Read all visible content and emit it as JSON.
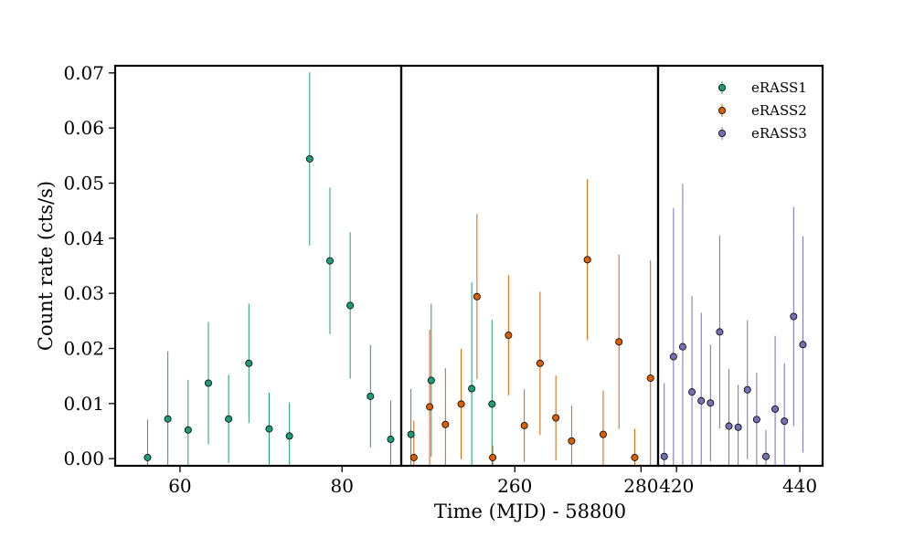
{
  "chart_data": {
    "type": "scatter",
    "xlabel": "Time (MJD) - 58800",
    "ylabel": "Count rate (cts/s)",
    "ylim": [
      -0.0013,
      0.0713
    ],
    "yticks": [
      0.0,
      0.01,
      0.02,
      0.03,
      0.04,
      0.05,
      0.06,
      0.07
    ],
    "ytick_labels": [
      "0.00",
      "0.01",
      "0.02",
      "0.03",
      "0.04",
      "0.05",
      "0.06",
      "0.07"
    ],
    "legend": {
      "position": "top-right"
    },
    "panels": [
      {
        "xlim": [
          52.0,
          87.3
        ],
        "xticks": [
          60,
          80
        ],
        "xtick_labels": [
          "60",
          "80"
        ]
      },
      {
        "xlim": [
          242.0,
          282.7
        ],
        "xticks": [
          260,
          280
        ],
        "xtick_labels": [
          "260",
          "280"
        ]
      },
      {
        "xlim": [
          417.0,
          443.7
        ],
        "xticks": [
          420,
          440
        ],
        "xtick_labels": [
          "420",
          "440"
        ]
      }
    ],
    "series": [
      {
        "name": "eRASS1",
        "color": "#1b9e77",
        "panel": 0,
        "points": [
          {
            "x": 56.0,
            "y": 0.0002,
            "err": 0.0069
          },
          {
            "x": 58.5,
            "y": 0.0072,
            "err": 0.0123
          },
          {
            "x": 61.0,
            "y": 0.0052,
            "err": 0.0091
          },
          {
            "x": 63.5,
            "y": 0.0137,
            "err": 0.0111
          },
          {
            "x": 66.0,
            "y": 0.0072,
            "err": 0.008
          },
          {
            "x": 68.5,
            "y": 0.0173,
            "err": 0.0108
          },
          {
            "x": 71.0,
            "y": 0.0054,
            "err": 0.0066
          },
          {
            "x": 73.5,
            "y": 0.0041,
            "err": 0.0061
          },
          {
            "x": 76.0,
            "y": 0.0544,
            "err": 0.0157
          },
          {
            "x": 78.5,
            "y": 0.0359,
            "err": 0.0133
          },
          {
            "x": 81.0,
            "y": 0.0278,
            "err": 0.0133
          },
          {
            "x": 83.5,
            "y": 0.0113,
            "err": 0.0093
          },
          {
            "x": 86.0,
            "y": 0.0035,
            "err": 0.007
          },
          {
            "x": 88.5,
            "y": 0.0044,
            "err": 0.0083
          },
          {
            "x": 91.0,
            "y": 0.0142,
            "err": 0.0139
          },
          {
            "x": 96.0,
            "y": 0.0127,
            "err": 0.0193
          },
          {
            "x": 98.5,
            "y": 0.0099,
            "err": 0.0153
          }
        ]
      },
      {
        "name": "eRASS2",
        "color": "#d95f02",
        "panel": 1,
        "points": [
          {
            "x": 244.0,
            "y": 0.0002,
            "err": 0.0067
          },
          {
            "x": 246.5,
            "y": 0.0094,
            "err": 0.014
          },
          {
            "x": 249.0,
            "y": 0.0062,
            "err": 0.0102
          },
          {
            "x": 251.5,
            "y": 0.0099,
            "err": 0.01
          },
          {
            "x": 254.0,
            "y": 0.0294,
            "err": 0.015
          },
          {
            "x": 256.5,
            "y": 0.0002,
            "err": 0.0022
          },
          {
            "x": 259.0,
            "y": 0.0224,
            "err": 0.0109
          },
          {
            "x": 261.5,
            "y": 0.006,
            "err": 0.0066
          },
          {
            "x": 264.0,
            "y": 0.0173,
            "err": 0.013
          },
          {
            "x": 266.5,
            "y": 0.0074,
            "err": 0.0077
          },
          {
            "x": 269.0,
            "y": 0.0032,
            "err": 0.0064
          },
          {
            "x": 271.5,
            "y": 0.0361,
            "err": 0.0146
          },
          {
            "x": 274.0,
            "y": 0.0044,
            "err": 0.008
          },
          {
            "x": 276.5,
            "y": 0.0212,
            "err": 0.0158
          },
          {
            "x": 279.0,
            "y": 0.0002,
            "err": 0.0052
          },
          {
            "x": 281.5,
            "y": 0.0146,
            "err": 0.0214
          }
        ]
      },
      {
        "name": "eRASS3",
        "color": "#7570b3",
        "panel": 2,
        "points": [
          {
            "x": 418.0,
            "y": 0.0004,
            "err": 0.0133
          },
          {
            "x": 419.5,
            "y": 0.0185,
            "err": 0.027
          },
          {
            "x": 421.0,
            "y": 0.0203,
            "err": 0.0296
          },
          {
            "x": 422.5,
            "y": 0.0121,
            "err": 0.0174
          },
          {
            "x": 424.0,
            "y": 0.0105,
            "err": 0.016
          },
          {
            "x": 425.5,
            "y": 0.0101,
            "err": 0.0106
          },
          {
            "x": 427.0,
            "y": 0.023,
            "err": 0.0175
          },
          {
            "x": 428.5,
            "y": 0.0059,
            "err": 0.0104
          },
          {
            "x": 430.0,
            "y": 0.0057,
            "err": 0.0077
          },
          {
            "x": 431.5,
            "y": 0.0125,
            "err": 0.0126
          },
          {
            "x": 433.0,
            "y": 0.0071,
            "err": 0.0085
          },
          {
            "x": 434.5,
            "y": 0.0004,
            "err": 0.0048
          },
          {
            "x": 436.0,
            "y": 0.009,
            "err": 0.0133
          },
          {
            "x": 437.5,
            "y": 0.0068,
            "err": 0.0105
          },
          {
            "x": 439.0,
            "y": 0.0258,
            "err": 0.0199
          },
          {
            "x": 440.5,
            "y": 0.0207,
            "err": 0.0196
          }
        ]
      }
    ]
  }
}
